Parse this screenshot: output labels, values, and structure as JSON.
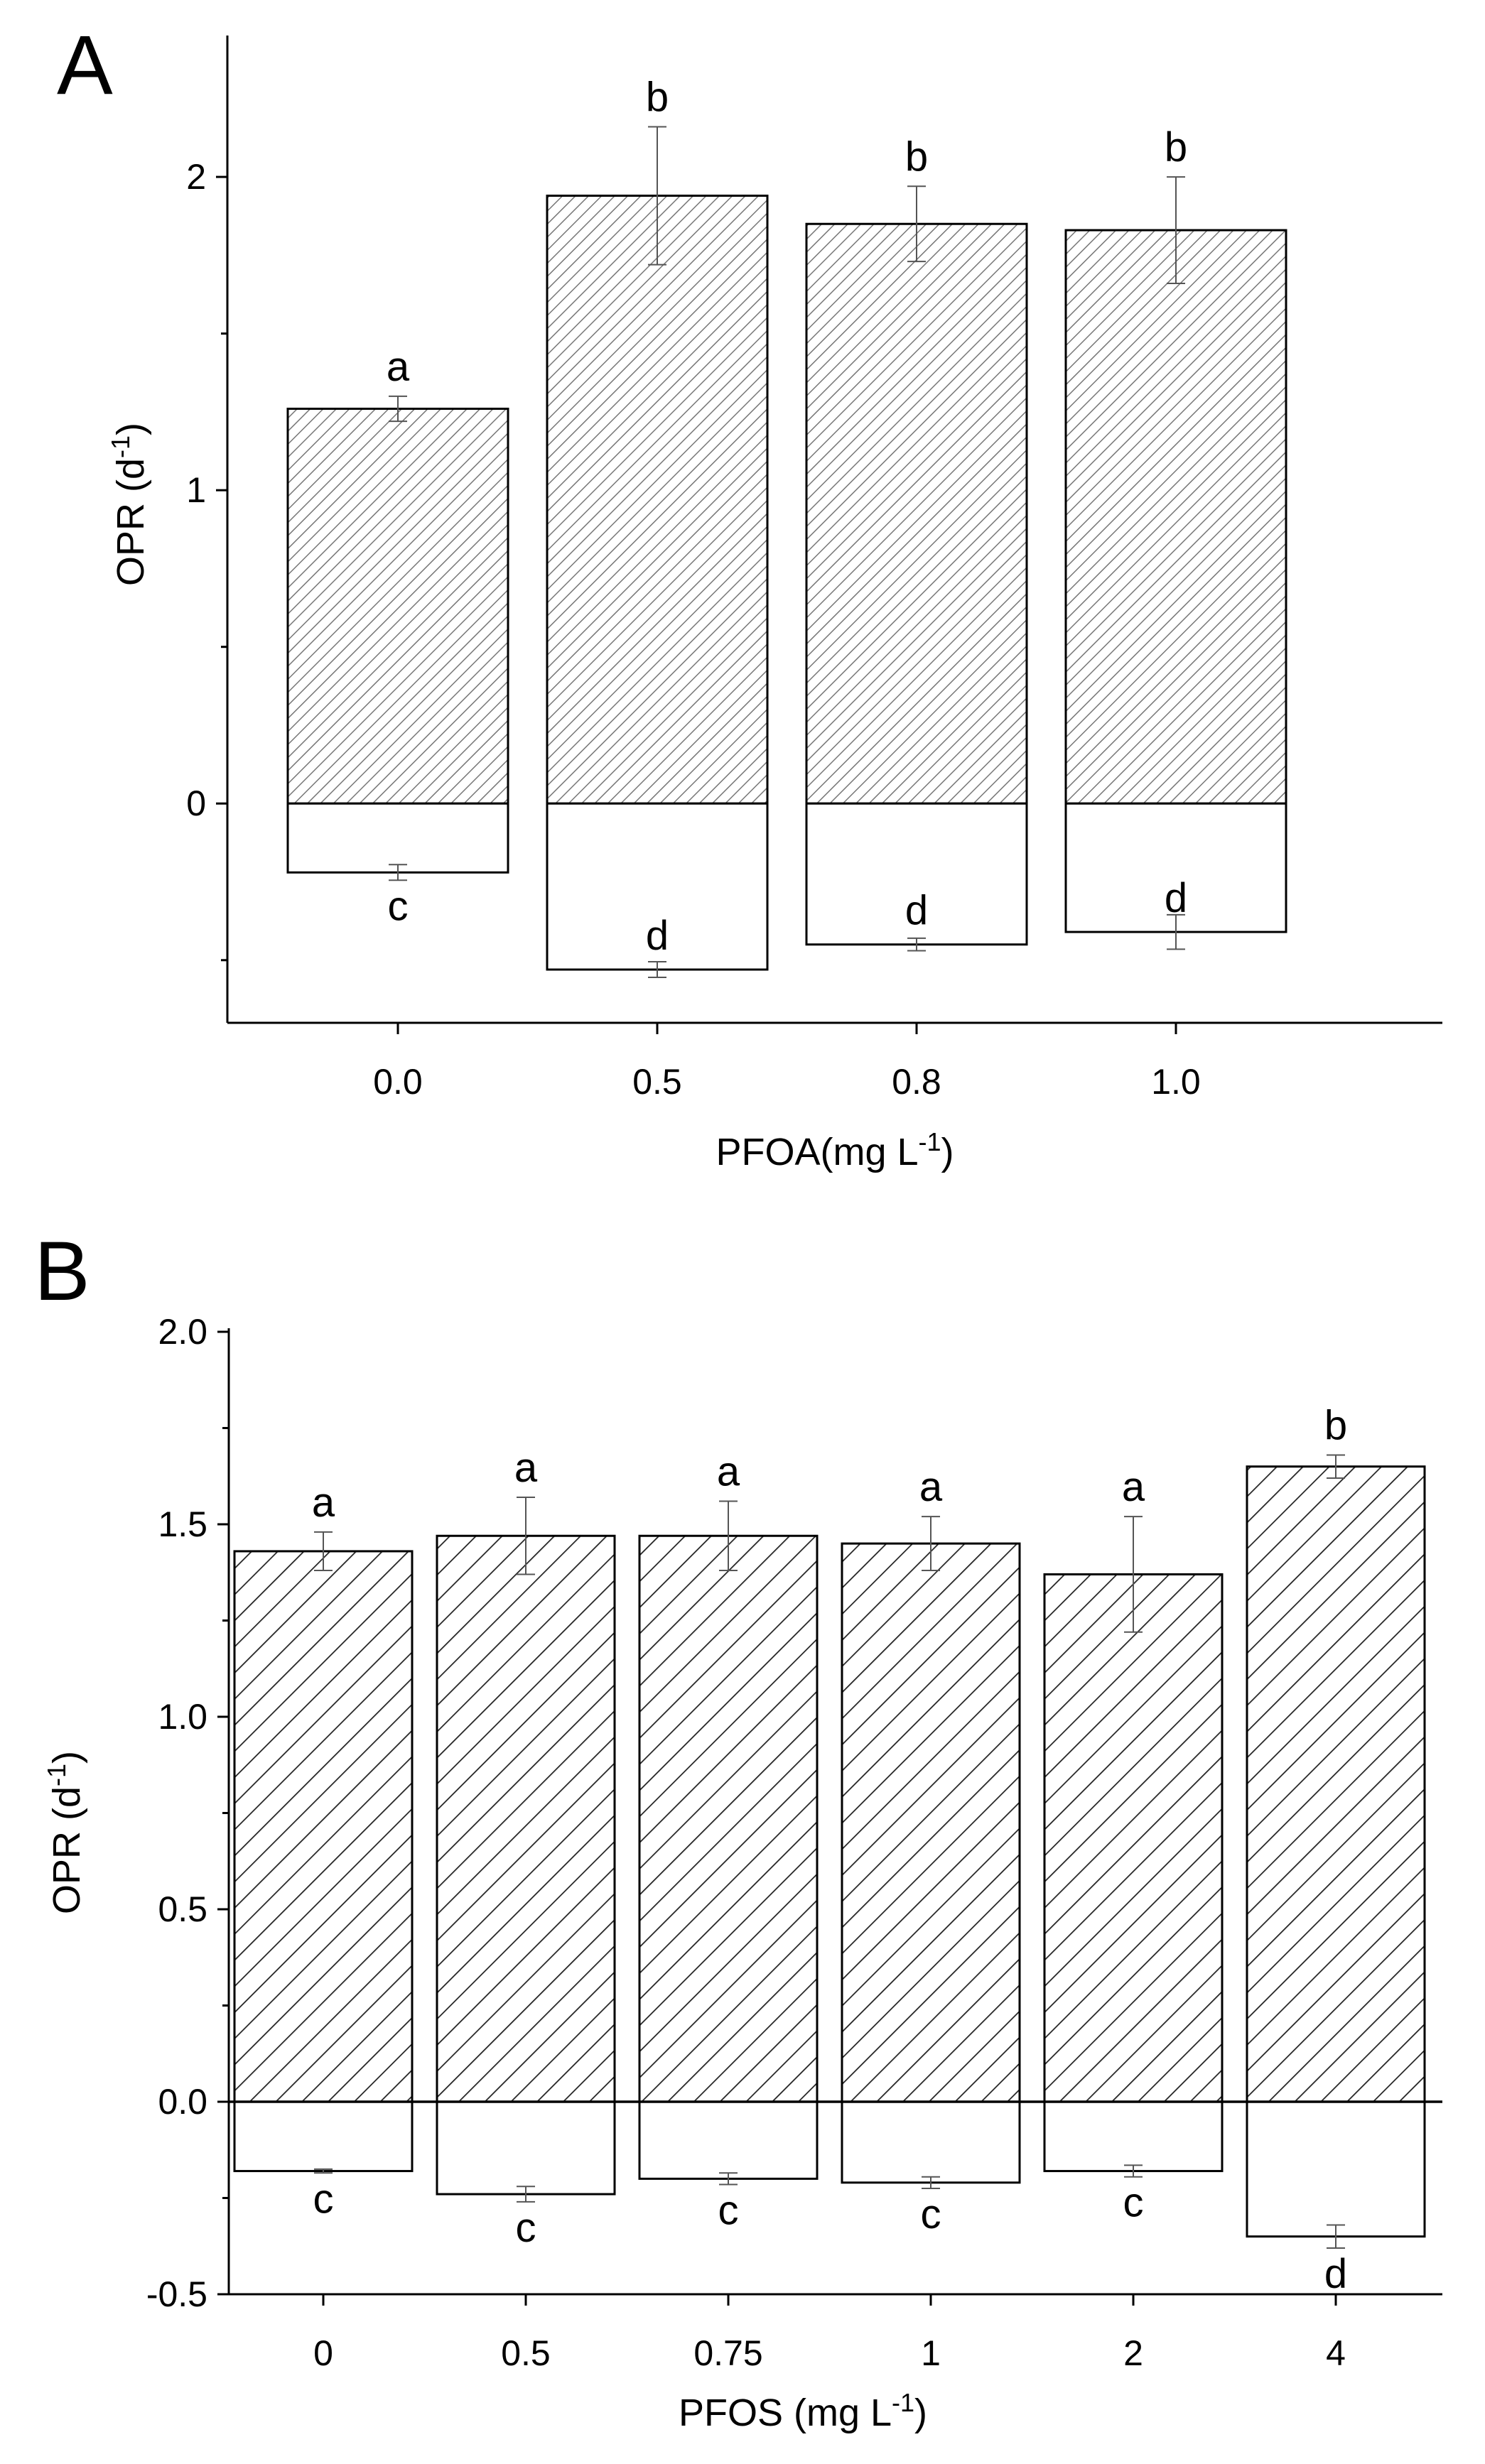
{
  "chart_data": [
    {
      "type": "bar",
      "panel_label": "A",
      "categories": [
        "0.0",
        "0.5",
        "0.8",
        "1.0"
      ],
      "series": [
        {
          "values": [
            1.26,
            1.94,
            1.85,
            1.83
          ],
          "errors": [
            0.04,
            0.22,
            0.12,
            0.17
          ],
          "letters": [
            "a",
            "b",
            "b",
            "b"
          ],
          "fill": "hatched"
        },
        {
          "values": [
            -0.22,
            -0.53,
            -0.45,
            -0.41
          ],
          "errors": [
            0.025,
            0.025,
            0.02,
            0.055
          ],
          "letters": [
            "c",
            "d",
            "d",
            "d"
          ],
          "fill": "white"
        }
      ],
      "ylabel": "OPR (d",
      "ylabel_sup": "-1",
      "ylabel_end": ")",
      "xlabel": "PFOA(mg L",
      "xlabel_sup": "-1",
      "xlabel_end": ")",
      "yticks": [
        0,
        1,
        2
      ],
      "ytick_labels": [
        "0",
        "1",
        "2"
      ],
      "ylim": [
        -0.7,
        2.5
      ],
      "zero_line": false,
      "grid": false
    },
    {
      "type": "bar",
      "panel_label": "B",
      "categories": [
        "0",
        "0.5",
        "0.75",
        "1",
        "2",
        "4"
      ],
      "series": [
        {
          "values": [
            1.43,
            1.47,
            1.47,
            1.45,
            1.37,
            1.65
          ],
          "errors": [
            0.05,
            0.1,
            0.09,
            0.07,
            0.15,
            0.03
          ],
          "letters": [
            "a",
            "a",
            "a",
            "a",
            "a",
            "b"
          ],
          "fill": "hatched"
        },
        {
          "values": [
            -0.18,
            -0.24,
            -0.2,
            -0.21,
            -0.18,
            -0.35
          ],
          "errors": [
            0.005,
            0.02,
            0.015,
            0.015,
            0.015,
            0.03
          ],
          "letters": [
            "c",
            "c",
            "c",
            "c",
            "c",
            "d"
          ],
          "fill": "white"
        }
      ],
      "ylabel": "OPR (d",
      "ylabel_sup": "-1",
      "ylabel_end": ")",
      "xlabel": "PFOS (mg L",
      "xlabel_sup": "-1",
      "xlabel_end": ")",
      "yticks": [
        -0.5,
        0,
        0.5,
        1,
        1.5,
        2
      ],
      "ytick_labels": [
        "-0.5",
        "0.0",
        "0.5",
        "1.0",
        "1.5",
        "2.0"
      ],
      "ylim": [
        -0.5,
        2.0
      ],
      "zero_line": true,
      "grid": false
    }
  ]
}
